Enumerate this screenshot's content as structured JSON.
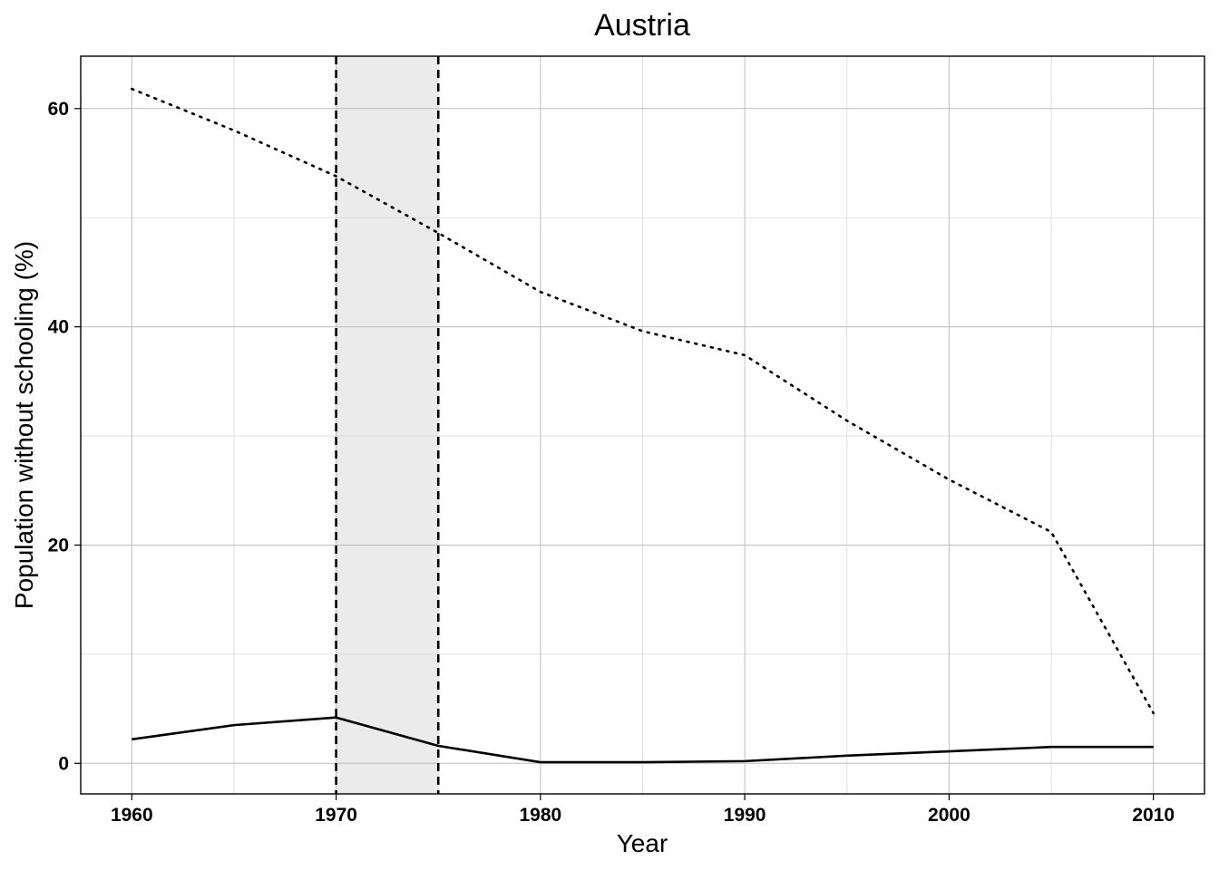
{
  "chart_data": {
    "type": "line",
    "title": "Austria",
    "xlabel": "Year",
    "ylabel": "Population without schooling (%)",
    "xlim": [
      1957.5,
      2012.5
    ],
    "ylim": [
      -2.8,
      64.8
    ],
    "x_ticks": [
      1960,
      1970,
      1980,
      1990,
      2000,
      2010
    ],
    "y_ticks": [
      0,
      20,
      40,
      60
    ],
    "x_minor_grid": [
      1965,
      1975,
      1985,
      1995,
      2005
    ],
    "y_minor_grid": [
      10,
      30,
      50
    ],
    "grid": true,
    "legend": "none",
    "highlight_band": {
      "from": 1970,
      "to": 1975,
      "boundary_style": "dashed"
    },
    "colors": {
      "line": "#000000",
      "band": "#ebebeb",
      "grid": "#d9d9d9"
    },
    "series": [
      {
        "style": "dotted",
        "x": [
          1960,
          1965,
          1970,
          1975,
          1980,
          1985,
          1990,
          1995,
          2000,
          2005,
          2010
        ],
        "values": [
          61.8,
          58.0,
          53.8,
          48.6,
          43.2,
          39.6,
          37.4,
          31.4,
          26.0,
          21.2,
          4.6
        ]
      },
      {
        "style": "solid",
        "x": [
          1960,
          1965,
          1970,
          1975,
          1980,
          1985,
          1990,
          1995,
          2000,
          2005,
          2010
        ],
        "values": [
          2.2,
          3.5,
          4.2,
          1.6,
          0.1,
          0.1,
          0.2,
          0.7,
          1.1,
          1.5,
          1.5
        ]
      }
    ]
  }
}
